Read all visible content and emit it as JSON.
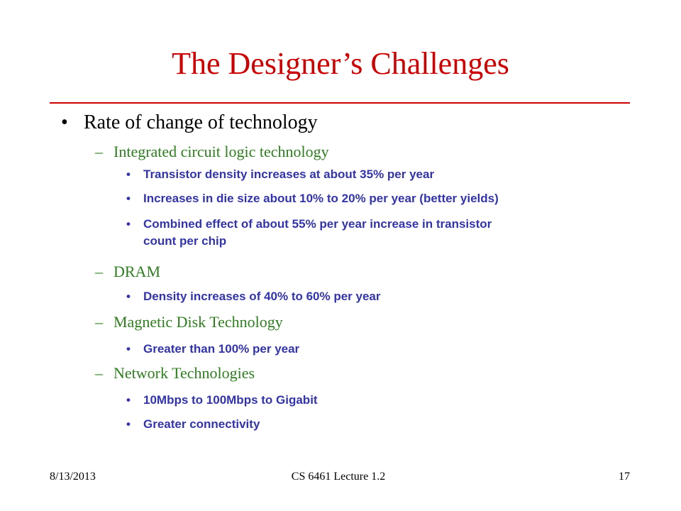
{
  "colors": {
    "title": "#cc0000",
    "rule": "#cc0000",
    "level2": "#2e7d1f",
    "level3": "#3333aa"
  },
  "slide": {
    "title": "The Designer’s Challenges",
    "bullet_l1": "•",
    "dash_l2": "–",
    "bullet_l3": "•",
    "items": [
      "Rate of change of technology",
      "Integrated circuit logic technology",
      "Transistor density increases at about 35% per year",
      "Increases in die size about 10% to 20% per year (better yields)",
      "Combined effect of about 55% per year increase in transistor",
      "count per chip",
      "DRAM",
      "Density increases of 40% to 60% per year",
      "Magnetic Disk Technology",
      "Greater than 100% per year",
      "Network Technologies",
      "10Mbps to 100Mbps to Gigabit",
      "Greater connectivity"
    ]
  },
  "footer": {
    "date": "8/13/2013",
    "course": "CS 6461 Lecture 1.2",
    "page": "17"
  }
}
